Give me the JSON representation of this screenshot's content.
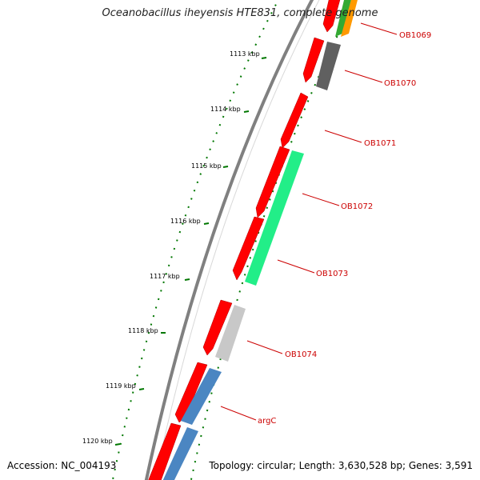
{
  "title": "Oceanobacillus iheyensis HTE831, complete genome",
  "accession": "Accession: NC_004193",
  "summary": "Topology: circular; Length: 3,630,528 bp; Genes: 3,591",
  "tick_labels": [
    "1113 kbp",
    "1114 kbp",
    "1115 kbp",
    "1116 kbp",
    "1117 kbp",
    "1118 kbp",
    "1119 kbp",
    "1120 kbp"
  ],
  "gene_labels": [
    "OB1069",
    "OB1070",
    "OB1071",
    "OB1072",
    "OB1073",
    "OB1074",
    "argC"
  ],
  "colors": {
    "backbone": "#808080",
    "cds": "#ff0000",
    "label": "#cc0000",
    "ticks": "#007700",
    "cog_dark_gray": "#606060",
    "cog_green": "#22ee88",
    "cog_light_gray": "#c8c8c8",
    "cog_blue": "#4b86c2",
    "cog_orange": "#ff9900"
  }
}
